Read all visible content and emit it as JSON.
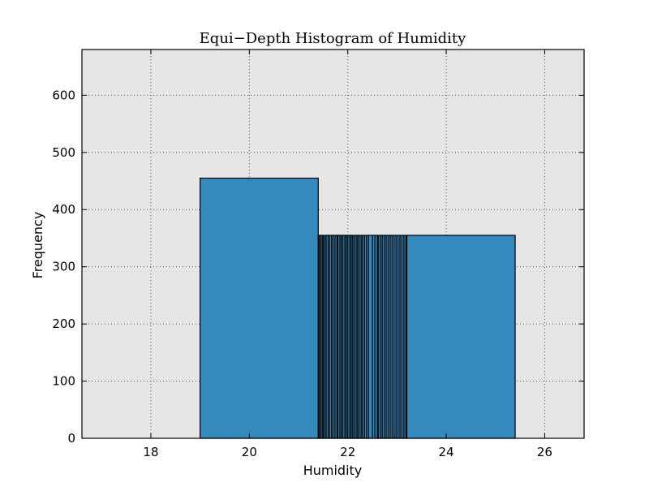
{
  "chart_data": {
    "type": "bar",
    "title": "Equi−Depth Histogram of Humidity",
    "xlabel": "Humidity",
    "ylabel": "Frequency",
    "xlim": [
      16.6,
      26.8
    ],
    "ylim": [
      0,
      680
    ],
    "xticks": [
      18,
      20,
      22,
      24,
      26
    ],
    "yticks": [
      0,
      100,
      200,
      300,
      400,
      500,
      600
    ],
    "grid": true,
    "colors": {
      "background": "#e5e5e5",
      "bar_fill": "#348abd",
      "bar_edge": "#000000",
      "grid": "#555555"
    },
    "bins": [
      {
        "x0": 19.0,
        "x1": 21.4,
        "value": 455
      },
      {
        "x0": 21.4,
        "x1": 23.2,
        "value": 355
      },
      {
        "x0": 23.2,
        "x1": 25.4,
        "value": 355
      }
    ],
    "bin_edges_in_dense_region": [
      21.42,
      21.45,
      21.48,
      21.5,
      21.53,
      21.56,
      21.6,
      21.63,
      21.67,
      21.7,
      21.74,
      21.78,
      21.8,
      21.84,
      21.87,
      21.9,
      21.94,
      21.97,
      22.0,
      22.04,
      22.07,
      22.1,
      22.13,
      22.17,
      22.2,
      22.23,
      22.27,
      22.3,
      22.34,
      22.38,
      22.42,
      22.5,
      22.55,
      22.6,
      22.62,
      22.66,
      22.7,
      22.74,
      22.78,
      22.82,
      22.86,
      22.9,
      22.94,
      22.98,
      23.02,
      23.06,
      23.1,
      23.14,
      23.18
    ]
  }
}
